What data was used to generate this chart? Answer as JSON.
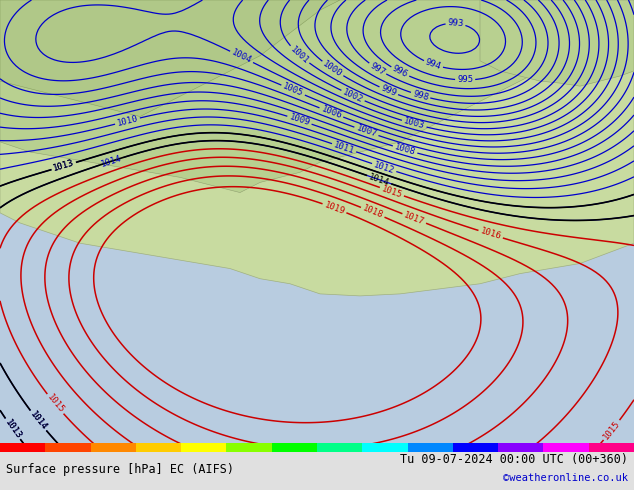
{
  "title_left": "Surface pressure [hPa] EC (AIFS)",
  "title_right": "Tu 09-07-2024 00:00 UTC (00+360)",
  "credit": "©weatheronline.co.uk",
  "bg_color": "#e8e8e8",
  "map_bg": "#d0e8c0",
  "sea_color": "#c8d8f0",
  "figsize": [
    6.34,
    4.9
  ],
  "dpi": 100
}
